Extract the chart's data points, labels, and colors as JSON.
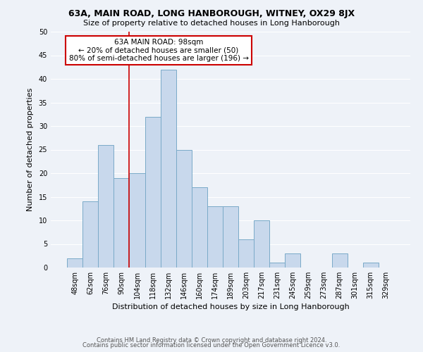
{
  "title": "63A, MAIN ROAD, LONG HANBOROUGH, WITNEY, OX29 8JX",
  "subtitle": "Size of property relative to detached houses in Long Hanborough",
  "xlabel": "Distribution of detached houses by size in Long Hanborough",
  "ylabel": "Number of detached properties",
  "footer_line1": "Contains HM Land Registry data © Crown copyright and database right 2024.",
  "footer_line2": "Contains public sector information licensed under the Open Government Licence v3.0.",
  "bar_labels": [
    "48sqm",
    "62sqm",
    "76sqm",
    "90sqm",
    "104sqm",
    "118sqm",
    "132sqm",
    "146sqm",
    "160sqm",
    "174sqm",
    "189sqm",
    "203sqm",
    "217sqm",
    "231sqm",
    "245sqm",
    "259sqm",
    "273sqm",
    "287sqm",
    "301sqm",
    "315sqm",
    "329sqm"
  ],
  "bar_values": [
    2,
    14,
    26,
    19,
    20,
    32,
    42,
    25,
    17,
    13,
    13,
    6,
    10,
    1,
    3,
    0,
    0,
    3,
    0,
    1,
    0
  ],
  "bar_color": "#c8d8ec",
  "bar_edge_color": "#7aaac8",
  "vline_x": 3.5,
  "vline_color": "#cc0000",
  "annotation_title": "63A MAIN ROAD: 98sqm",
  "annotation_line1": "← 20% of detached houses are smaller (50)",
  "annotation_line2": "80% of semi-detached houses are larger (196) →",
  "annotation_box_facecolor": "white",
  "annotation_box_edgecolor": "#cc0000",
  "ylim": [
    0,
    50
  ],
  "yticks": [
    0,
    5,
    10,
    15,
    20,
    25,
    30,
    35,
    40,
    45,
    50
  ],
  "background_color": "#eef2f8",
  "grid_color": "white",
  "title_fontsize": 9,
  "subtitle_fontsize": 8,
  "xlabel_fontsize": 8,
  "ylabel_fontsize": 8,
  "tick_fontsize": 7,
  "footer_fontsize": 6
}
